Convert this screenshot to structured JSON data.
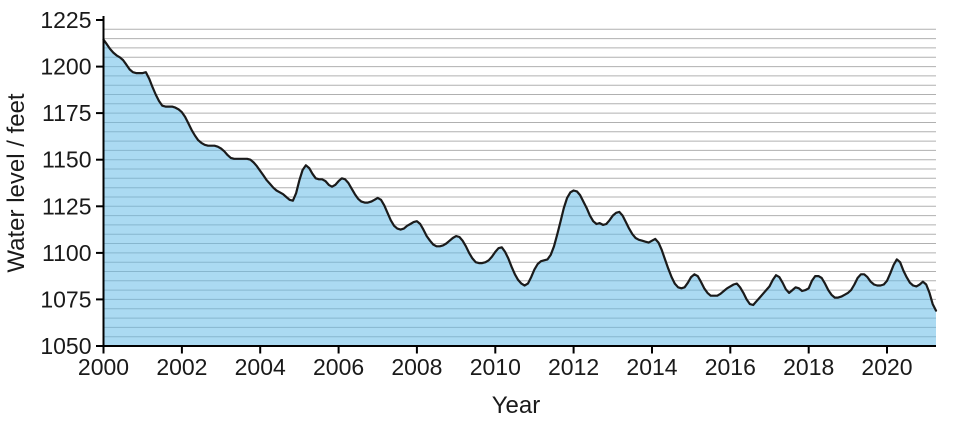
{
  "chart_data": {
    "type": "area",
    "title": "",
    "xlabel": "Year",
    "ylabel": "Water level / feet",
    "x_ticks": [
      2000,
      2002,
      2004,
      2006,
      2008,
      2010,
      2012,
      2014,
      2016,
      2018,
      2020
    ],
    "y_ticks": [
      1050,
      1075,
      1100,
      1125,
      1150,
      1175,
      1200,
      1225
    ],
    "xlim": [
      2000,
      2021.25
    ],
    "ylim": [
      1050,
      1225
    ],
    "grid_step_y": 5,
    "legend": "none",
    "series": [
      {
        "name": "Water level",
        "start_year": 2000,
        "interval_months": 1,
        "values": [
          1214.5,
          1212,
          1209.5,
          1207.5,
          1206,
          1205,
          1203.5,
          1201,
          1198.5,
          1197,
          1196.5,
          1196.5,
          1196.5,
          1197,
          1193.5,
          1189,
          1185,
          1181.5,
          1179,
          1178.5,
          1178.5,
          1178.5,
          1178,
          1177,
          1175.5,
          1173,
          1169.5,
          1166,
          1163,
          1160.5,
          1159,
          1158,
          1157.5,
          1157.5,
          1157.5,
          1157,
          1156,
          1154.5,
          1152.5,
          1151,
          1150.5,
          1150.5,
          1150.5,
          1150.5,
          1150.5,
          1150,
          1148.5,
          1146.5,
          1144,
          1141.5,
          1139,
          1137,
          1135,
          1133.5,
          1132.5,
          1131.5,
          1130,
          1128.5,
          1128,
          1132,
          1139,
          1144.5,
          1147,
          1145.5,
          1142.5,
          1140,
          1139.5,
          1139.5,
          1138.5,
          1136.5,
          1135.5,
          1136.5,
          1138.5,
          1140,
          1139.5,
          1137.5,
          1134.5,
          1131.5,
          1129,
          1127.5,
          1127,
          1127,
          1127.5,
          1128.5,
          1129.5,
          1128.5,
          1125.5,
          1121.5,
          1117.5,
          1114.5,
          1113,
          1112.5,
          1113,
          1114.5,
          1115.5,
          1116.5,
          1117,
          1115.5,
          1112.5,
          1109,
          1106.5,
          1104.5,
          1103.5,
          1103.5,
          1104,
          1105,
          1106.5,
          1108,
          1109,
          1108.5,
          1106.5,
          1103.5,
          1100,
          1097,
          1095,
          1094.5,
          1094.5,
          1095,
          1096,
          1098,
          1100.5,
          1102.5,
          1103,
          1100.5,
          1097,
          1092.5,
          1088.5,
          1085.5,
          1083.5,
          1082.5,
          1083.5,
          1087,
          1091,
          1094,
          1095.5,
          1096,
          1096.5,
          1099,
          1103.5,
          1110,
          1117,
          1124,
          1129.5,
          1132.5,
          1133.5,
          1133,
          1131,
          1127.5,
          1124,
          1120,
          1117,
          1115.5,
          1116,
          1115,
          1115.5,
          1117.5,
          1120,
          1121.5,
          1122,
          1120,
          1116.5,
          1113,
          1110,
          1108,
          1107,
          1106.5,
          1106,
          1105.5,
          1106.5,
          1107.5,
          1105.5,
          1101.5,
          1096.5,
          1091.5,
          1087,
          1083.5,
          1081.5,
          1081,
          1081.5,
          1084,
          1087,
          1088.5,
          1087.5,
          1084.5,
          1081,
          1078.5,
          1077,
          1077,
          1077,
          1078,
          1079.5,
          1081,
          1082,
          1083,
          1083.5,
          1081.5,
          1078.5,
          1075,
          1072.5,
          1072,
          1074,
          1076,
          1078,
          1080,
          1082,
          1085.5,
          1088,
          1087,
          1084,
          1080.5,
          1078.5,
          1080,
          1081.5,
          1081,
          1079.5,
          1080,
          1081,
          1085,
          1087.5,
          1087.5,
          1086.5,
          1083.5,
          1080,
          1077.5,
          1076,
          1076,
          1076.5,
          1077.5,
          1078.5,
          1080,
          1083,
          1086.5,
          1088.5,
          1088.5,
          1087,
          1084.5,
          1083,
          1082.5,
          1082.5,
          1083,
          1085,
          1089,
          1093.5,
          1096.5,
          1095,
          1090.5,
          1087,
          1084,
          1082.5,
          1082,
          1083,
          1084.5,
          1083,
          1078.5,
          1072.5,
          1069
        ]
      }
    ],
    "colors": {
      "fill": "#66bbe8",
      "fill_opacity": 0.55,
      "line": "#1b1b1b",
      "grid": "#b0b0b0",
      "axis": "#000000",
      "text": "#1a1a1a"
    }
  }
}
